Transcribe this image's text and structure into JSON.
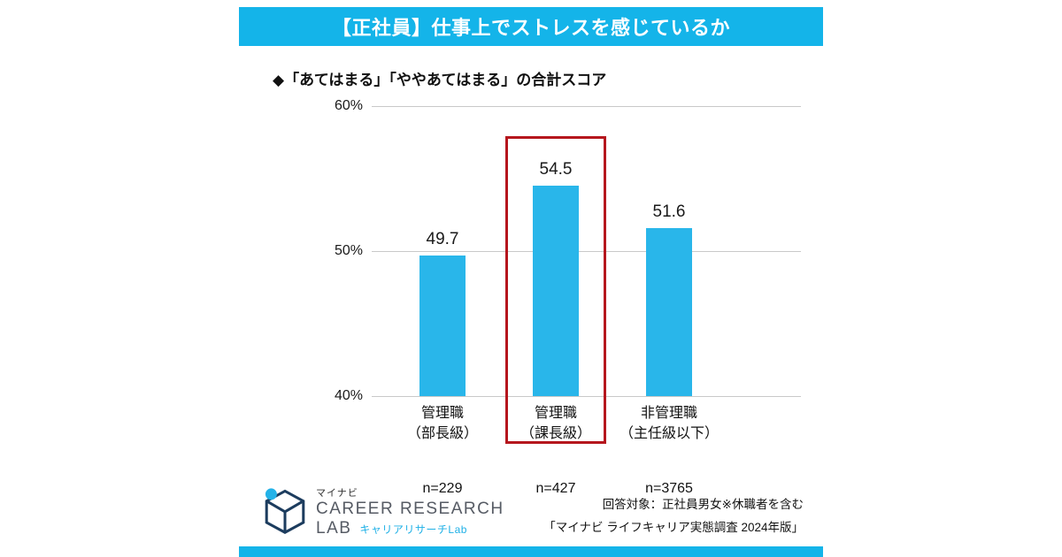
{
  "header": {
    "title": "【正社員】仕事上でストレスを感じているか",
    "accent_color": "#14b4e9"
  },
  "subtitle": "◆「あてはまる」「ややあてはまる」の合計スコア",
  "chart_data": {
    "type": "bar",
    "title": "【正社員】仕事上でストレスを感じているか",
    "subtitle": "◆「あてはまる」「ややあてはまる」の合計スコア",
    "categories": [
      [
        "管理職",
        "（部長級）"
      ],
      [
        "管理職",
        "（課長級）"
      ],
      [
        "非管理職",
        "（主任級以下）"
      ]
    ],
    "values": [
      49.7,
      54.5,
      51.6
    ],
    "n_labels": [
      "n=229",
      "n=427",
      "n=3765"
    ],
    "ylim": [
      40,
      60
    ],
    "yticks": [
      {
        "label": "60%",
        "value": 60
      },
      {
        "label": "50%",
        "value": 50
      },
      {
        "label": "40%",
        "value": 40
      }
    ],
    "grid": true,
    "legend": "none",
    "highlight_index": 1,
    "bar_color": "#29b6ea",
    "highlight_color": "#b5161d"
  },
  "footer": {
    "logo": {
      "brand": "マイナビ",
      "line1": "CAREER RESEARCH",
      "line2": "LAB",
      "sub": "キャリアリサーチLab"
    },
    "note1": "回答対象：正社員男女※休職者を含む",
    "note2": "「マイナビ ライフキャリア実態調査  2024年版」"
  }
}
